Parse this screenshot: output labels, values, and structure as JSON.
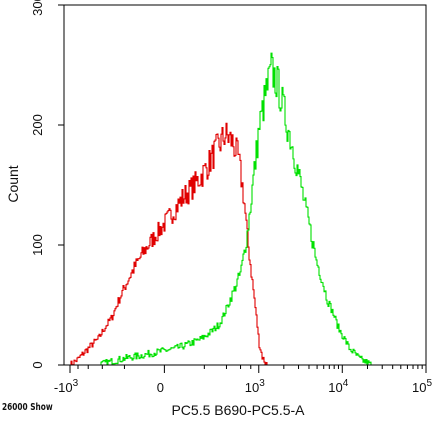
{
  "footer_text": "26000 Show",
  "colors": {
    "red_series": "#e00000",
    "green_series": "#00e000",
    "axis": "#000000"
  },
  "chart_data": {
    "type": "line",
    "title": "",
    "xlabel": "PC5.5 B690-PC5.5-A",
    "ylabel": "Count",
    "ylim": [
      0,
      300
    ],
    "y_ticks": [
      0,
      100,
      200,
      300
    ],
    "y_tick_labels": [
      "0",
      "100",
      "200",
      "300"
    ],
    "x_scale": "biexponential",
    "x_ticks": [
      -1000,
      0,
      1000,
      10000,
      100000
    ],
    "x_tick_labels": [
      {
        "base": "-10",
        "exp": "3"
      },
      {
        "base": "0",
        "exp": ""
      },
      {
        "base": "10",
        "exp": "3"
      },
      {
        "base": "10",
        "exp": "4"
      },
      {
        "base": "10",
        "exp": "5"
      }
    ],
    "grid": false,
    "series": [
      {
        "color": "#e00000",
        "x": [
          -1000,
          -800,
          -600,
          -450,
          -300,
          -200,
          -100,
          0,
          80,
          180,
          280,
          380,
          470,
          560,
          650,
          730,
          820,
          920,
          1000,
          1100,
          1250
        ],
        "y": [
          0,
          5,
          14,
          22,
          40,
          65,
          92,
          118,
          140,
          158,
          178,
          192,
          186,
          172,
          140,
          102,
          72,
          42,
          18,
          6,
          0
        ]
      },
      {
        "color": "#00e000",
        "x": [
          -450,
          -300,
          -100,
          50,
          180,
          320,
          450,
          600,
          720,
          850,
          1000,
          1200,
          1400,
          1700,
          2100,
          2700,
          3600,
          4800,
          6500,
          9000,
          12000,
          16000,
          22000
        ],
        "y": [
          0,
          3,
          8,
          14,
          22,
          34,
          56,
          78,
          110,
          155,
          198,
          226,
          246,
          232,
          204,
          172,
          130,
          88,
          55,
          30,
          14,
          5,
          0
        ]
      }
    ]
  }
}
